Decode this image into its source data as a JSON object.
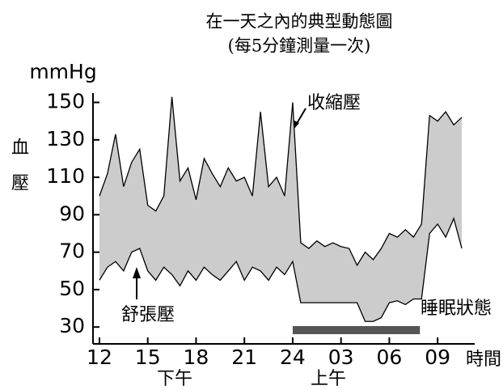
{
  "chart_data": {
    "type": "line",
    "title": "在一天之內的典型動態圖",
    "subtitle": "(每5分鐘測量一次)",
    "y_unit": "mmHg",
    "ylabel": "血壓",
    "xlabel": "時間",
    "x_period_labels": [
      "下午",
      "上午"
    ],
    "annotations": [
      "收縮壓",
      "舒張壓",
      "睡眠狀態"
    ],
    "x": [
      12,
      12.5,
      13,
      13.5,
      14,
      14.5,
      15,
      15.5,
      16,
      16.5,
      17,
      17.5,
      18,
      18.5,
      19,
      19.5,
      20,
      20.5,
      21,
      21.5,
      22,
      22.5,
      23,
      23.5,
      24,
      24.5,
      25,
      25.5,
      26,
      26.5,
      27,
      27.5,
      28,
      28.5,
      29,
      29.5,
      30,
      30.5,
      31,
      31.5,
      32,
      32.5,
      33,
      33.5,
      34,
      34.5
    ],
    "series": [
      {
        "name": "收縮壓",
        "color": "#000000",
        "values": [
          100,
          112,
          133,
          105,
          118,
          125,
          95,
          92,
          100,
          153,
          108,
          115,
          98,
          120,
          112,
          105,
          115,
          108,
          110,
          100,
          145,
          105,
          110,
          100,
          150,
          75,
          72,
          76,
          73,
          75,
          73,
          72,
          63,
          70,
          66,
          72,
          80,
          78,
          82,
          78,
          85,
          143,
          140,
          145,
          138,
          142
        ]
      },
      {
        "name": "舒張壓",
        "color": "#000000",
        "values": [
          55,
          62,
          65,
          60,
          70,
          72,
          60,
          55,
          62,
          58,
          52,
          60,
          55,
          62,
          58,
          55,
          60,
          65,
          55,
          62,
          60,
          55,
          62,
          58,
          65,
          43,
          43,
          43,
          43,
          43,
          43,
          43,
          43,
          33,
          33,
          35,
          43,
          44,
          42,
          45,
          45,
          80,
          85,
          78,
          88,
          72
        ]
      }
    ],
    "range_color": "#cccccc",
    "sleep_period": [
      24,
      31.9
    ],
    "sleep_color": "#555555",
    "xlim": [
      11.6,
      35
    ],
    "xticks": [
      12,
      15,
      18,
      21,
      24,
      {
        "value": 27,
        "label": "03"
      },
      {
        "value": 30,
        "label": "06"
      },
      {
        "value": 33,
        "label": "09"
      }
    ],
    "ylim": [
      21,
      155
    ],
    "yticks": [
      30,
      50,
      70,
      90,
      110,
      130,
      150
    ]
  }
}
